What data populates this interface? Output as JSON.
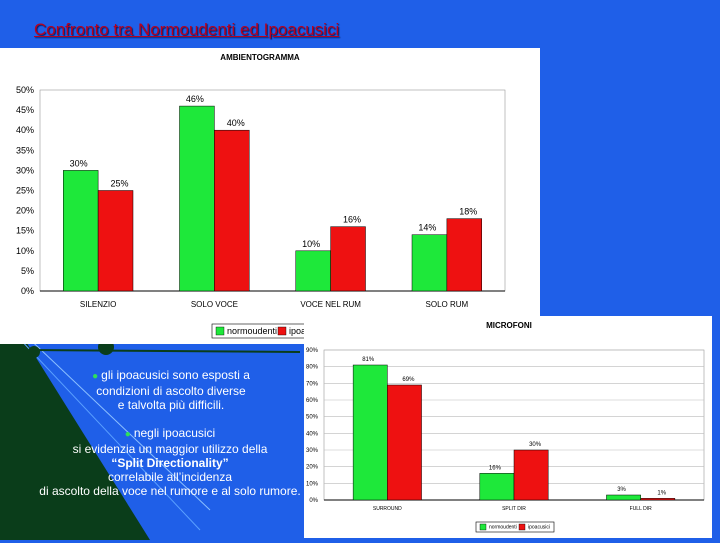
{
  "slide": {
    "title": "Confronto tra Normoudenti ed Ipoacusici",
    "bullets": [
      {
        "lines": [
          "gli ipoacusici sono esposti a",
          "condizioni di ascolto diverse",
          "e talvolta più difficili."
        ]
      },
      {
        "lines": [
          "negli ipoacusici",
          "si evidenzia un maggior utilizzo della",
          "“Split Directionality”",
          "correlabile all’incidenza",
          "di ascolto della voce nel rumore e al solo rumore."
        ]
      }
    ]
  },
  "colors": {
    "background": "#1f5fe8",
    "normoudenti": "#1ee83a",
    "ipoacusici": "#ee1111",
    "title": "#b8001f",
    "accent": "#0a3d1a"
  },
  "chart_data": [
    {
      "type": "bar",
      "title": "AMBIENTOGRAMMA",
      "categories": [
        "SILENZIO",
        "SOLO VOCE",
        "VOCE NEL RUM",
        "SOLO RUM"
      ],
      "series": [
        {
          "name": "normoudenti",
          "values": [
            30,
            46,
            10,
            14
          ]
        },
        {
          "name": "ipoacusici",
          "values": [
            25,
            40,
            16,
            18
          ]
        }
      ],
      "value_labels": [
        [
          "30%",
          "46%",
          "10%",
          "14%"
        ],
        [
          "25%",
          "40%",
          "16%",
          "18%"
        ]
      ],
      "yticks": [
        "0%",
        "5%",
        "10%",
        "15%",
        "20%",
        "25%",
        "30%",
        "35%",
        "40%",
        "45%",
        "50%"
      ],
      "ylim": [
        0,
        50
      ],
      "legend": "bottom"
    },
    {
      "type": "bar",
      "title": "MICROFONI",
      "categories": [
        "SURROUND",
        "SPLIT DIR",
        "FULL DIR"
      ],
      "series": [
        {
          "name": "normoudenti",
          "values": [
            81,
            16,
            3
          ]
        },
        {
          "name": "ipoacusici",
          "values": [
            69,
            30,
            1
          ]
        }
      ],
      "value_labels": [
        [
          "81%",
          "16%",
          "3%"
        ],
        [
          "69%",
          "30%",
          "1%"
        ]
      ],
      "yticks": [
        "0%",
        "10%",
        "20%",
        "30%",
        "40%",
        "50%",
        "60%",
        "70%",
        "80%",
        "90%"
      ],
      "ylim": [
        0,
        90
      ],
      "legend": "bottom"
    }
  ]
}
